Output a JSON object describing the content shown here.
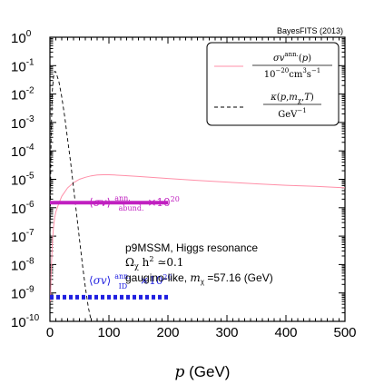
{
  "credit": "BayesFITS (2013)",
  "chart_data": {
    "type": "line",
    "xlabel": "p (GeV)",
    "xlim": [
      0,
      500
    ],
    "ylim_log10": [
      -10,
      0
    ],
    "yscale": "log",
    "x_ticks": [
      "0",
      "100",
      "200",
      "300",
      "400",
      "500"
    ],
    "y_ticks": [
      {
        "base": "10",
        "exp": "0"
      },
      {
        "base": "10",
        "exp": "-1"
      },
      {
        "base": "10",
        "exp": "-2"
      },
      {
        "base": "10",
        "exp": "-3"
      },
      {
        "base": "10",
        "exp": "-4"
      },
      {
        "base": "10",
        "exp": "-5"
      },
      {
        "base": "10",
        "exp": "-6"
      },
      {
        "base": "10",
        "exp": "-7"
      },
      {
        "base": "10",
        "exp": "-8"
      },
      {
        "base": "10",
        "exp": "-9"
      },
      {
        "base": "10",
        "exp": "-10"
      }
    ],
    "legend_position": "top-right",
    "series": [
      {
        "name": "σv^ann.(p) / 10^-20 cm^3 s^-1",
        "color": "#ff8fa8",
        "style": "solid",
        "x": [
          1,
          2,
          4,
          6,
          8,
          10,
          15,
          20,
          30,
          40,
          50,
          60,
          70,
          80,
          90,
          100,
          110,
          125,
          150,
          200,
          250,
          300,
          350,
          400,
          450,
          500
        ],
        "y_log10": [
          -9.3,
          -8.3,
          -7.3,
          -6.7,
          -6.35,
          -6.15,
          -5.85,
          -5.6,
          -5.3,
          -5.12,
          -5.0,
          -4.93,
          -4.88,
          -4.85,
          -4.84,
          -4.84,
          -4.85,
          -4.87,
          -4.9,
          -4.97,
          -5.04,
          -5.1,
          -5.16,
          -5.21,
          -5.25,
          -5.3
        ]
      },
      {
        "name": "κ(p, m_χ, T) / GeV^-1",
        "color": "#000000",
        "style": "dashed",
        "x": [
          0,
          2,
          4,
          6,
          8,
          10,
          15,
          20,
          25,
          30,
          35,
          40,
          45,
          50,
          55,
          60,
          65,
          70
        ],
        "y_log10": [
          -7.5,
          -3.5,
          -1.9,
          -1.4,
          -1.2,
          -1.22,
          -1.55,
          -2.1,
          -2.8,
          -3.6,
          -4.4,
          -5.3,
          -6.2,
          -7.1,
          -8.0,
          -8.8,
          -9.5,
          -10.0
        ]
      },
      {
        "name": "⟨σv⟩ann. abund. ×10^20",
        "color": "#c020c0",
        "style": "solid-thick",
        "x": [
          0,
          200
        ],
        "y_log10": [
          -5.82,
          -5.82
        ]
      },
      {
        "name": "⟨σv⟩ann. ID ×10^20",
        "color": "#2020e0",
        "style": "dotted-thick",
        "x": [
          0,
          200
        ],
        "y_log10": [
          -9.15,
          -9.15
        ]
      }
    ],
    "legend": [
      {
        "numerator": "σv^ann.(p)",
        "denominator": "10^-20 cm^3 s^-1"
      },
      {
        "numerator": "κ(p,m_χ,T)",
        "denominator": "GeV^-1"
      }
    ],
    "annotations": {
      "abund_label": "⟨σv⟩ann. abund. ×10^20",
      "id_label": "⟨σv⟩ann. ID ×10^20",
      "info_line1": "p9MSSM, Higgs resonance",
      "info_line2": "Ω_χ h^2 ≃0.1",
      "info_line3": "gaugino-like, m_χ =57.16 (GeV)"
    }
  }
}
